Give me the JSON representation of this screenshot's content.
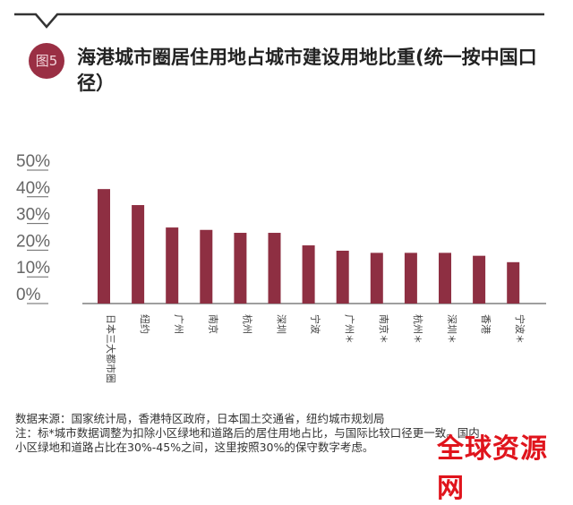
{
  "badge": "图5",
  "title": "海港城市圈居住用地占城市建设用地比重(统一按中国口径）",
  "colors": {
    "bar": "#8e2f42",
    "badge": "#9a2f44",
    "axis": "#666666",
    "watermark": "#e0141c"
  },
  "chart_data": {
    "type": "bar",
    "title": "海港城市圈居住用地占城市建设用地比重(统一按中国口径）",
    "categories": [
      "日本三大都市圈",
      "纽约",
      "广州",
      "南京",
      "杭州",
      "深圳",
      "宁波",
      "广州＊",
      "南京＊",
      "杭州＊",
      "深圳＊",
      "香港",
      "宁波＊"
    ],
    "values": [
      42.9,
      36.9,
      28.5,
      27.6,
      26.5,
      26.5,
      21.8,
      19.8,
      19.0,
      19.0,
      19.0,
      17.9,
      15.5
    ],
    "yticks": [
      "0%",
      "10%",
      "20%",
      "30%",
      "40%",
      "50%"
    ],
    "ylim": [
      0,
      50
    ],
    "xlabel": "",
    "ylabel": "",
    "grid": false
  },
  "notes": {
    "source": "数据来源：国家统计局，香港特区政府，日本国土交通省，纽约城市规划局",
    "note1": "注：标*城市数据调整为扣除小区绿地和道路后的居住用地占比，与国际比较口径更一致。国内",
    "note2": "小区绿地和道路占比在30%-45%之间，这里按照30%的保守数字考虑。"
  },
  "watermark": "全球资源网"
}
